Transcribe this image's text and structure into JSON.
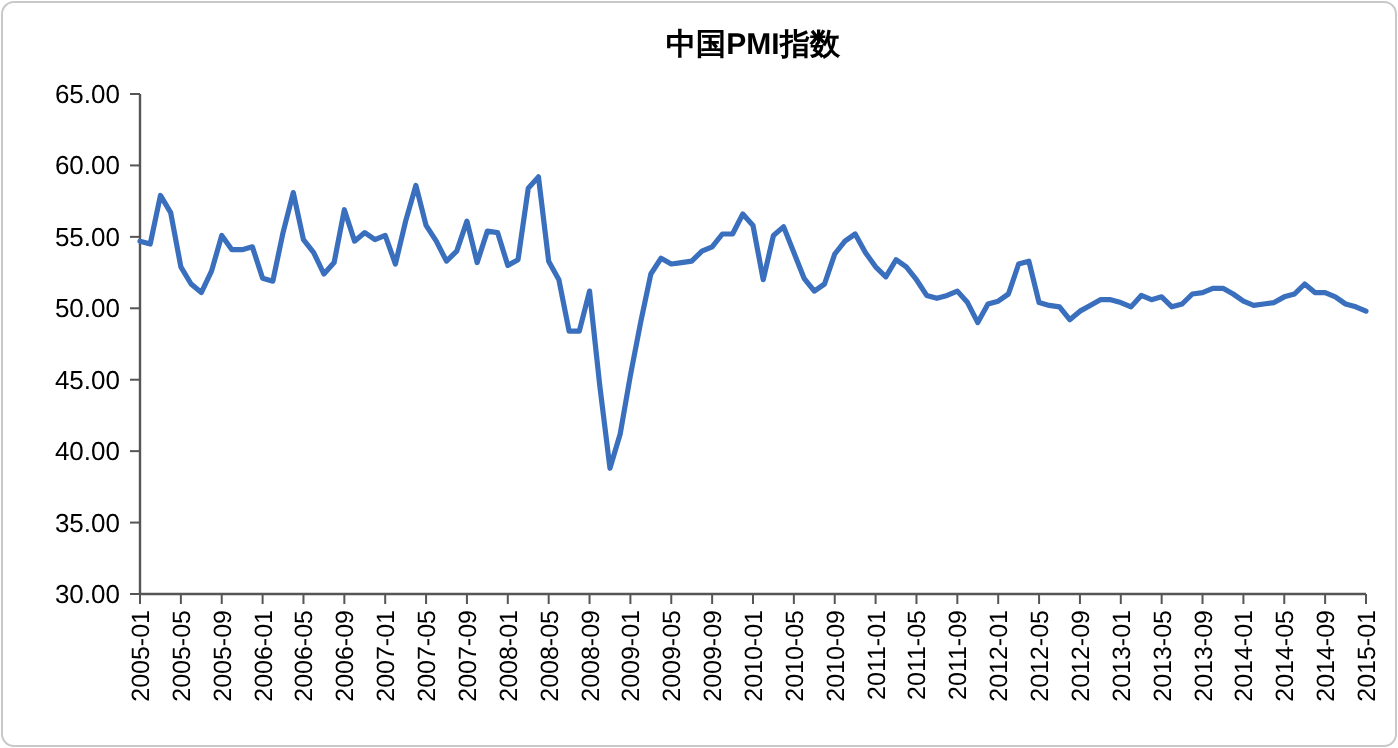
{
  "chart_data": {
    "type": "line",
    "title": "中国PMI指数",
    "categories": [
      "2005-01",
      null,
      null,
      null,
      "2005-05",
      null,
      null,
      null,
      "2005-09",
      null,
      null,
      null,
      "2006-01",
      null,
      null,
      null,
      "2006-05",
      null,
      null,
      null,
      "2006-09",
      null,
      null,
      null,
      "2007-01",
      null,
      null,
      null,
      "2007-05",
      null,
      null,
      null,
      "2007-09",
      null,
      null,
      null,
      "2008-01",
      null,
      null,
      null,
      "2008-05",
      null,
      null,
      null,
      "2008-09",
      null,
      null,
      null,
      "2009-01",
      null,
      null,
      null,
      "2009-05",
      null,
      null,
      null,
      "2009-09",
      null,
      null,
      null,
      "2010-01",
      null,
      null,
      null,
      "2010-05",
      null,
      null,
      null,
      "2010-09",
      null,
      null,
      null,
      "2011-01",
      null,
      null,
      null,
      "2011-05",
      null,
      null,
      null,
      "2011-09",
      null,
      null,
      null,
      "2012-01",
      null,
      null,
      null,
      "2012-05",
      null,
      null,
      null,
      "2012-09",
      null,
      null,
      null,
      "2013-01",
      null,
      null,
      null,
      "2013-05",
      null,
      null,
      null,
      "2013-09",
      null,
      null,
      null,
      "2014-01",
      null,
      null,
      null,
      "2014-05",
      null,
      null,
      null,
      "2014-09",
      null,
      null,
      null,
      "2015-01"
    ],
    "series": [
      {
        "color": "#3a6fbd",
        "values": [
          54.7,
          54.5,
          57.9,
          56.7,
          52.9,
          51.7,
          51.1,
          52.6,
          55.1,
          54.1,
          54.1,
          54.3,
          52.1,
          51.9,
          55.3,
          58.1,
          54.8,
          53.9,
          52.4,
          53.2,
          56.9,
          54.7,
          55.3,
          54.8,
          55.1,
          53.1,
          56.1,
          58.6,
          55.8,
          54.7,
          53.3,
          54.0,
          56.1,
          53.2,
          55.4,
          55.3,
          53.0,
          53.4,
          58.4,
          59.2,
          53.3,
          52.0,
          48.4,
          48.4,
          51.2,
          44.6,
          38.8,
          41.2,
          45.3,
          49.0,
          52.4,
          53.5,
          53.1,
          53.2,
          53.3,
          54.0,
          54.3,
          55.2,
          55.2,
          56.6,
          55.8,
          52.0,
          55.1,
          55.7,
          53.9,
          52.1,
          51.2,
          51.7,
          53.8,
          54.7,
          55.2,
          53.9,
          52.9,
          52.2,
          53.4,
          52.9,
          52.0,
          50.9,
          50.7,
          50.9,
          51.2,
          50.4,
          49.0,
          50.3,
          50.5,
          51.0,
          53.1,
          53.3,
          50.4,
          50.2,
          50.1,
          49.2,
          49.8,
          50.2,
          50.6,
          50.6,
          50.4,
          50.1,
          50.9,
          50.6,
          50.8,
          50.1,
          50.3,
          51.0,
          51.1,
          51.4,
          51.4,
          51.0,
          50.5,
          50.2,
          50.3,
          50.4,
          50.8,
          51.0,
          51.7,
          51.1,
          51.1,
          50.8,
          50.3,
          50.1,
          49.8
        ]
      }
    ],
    "ylim": [
      30,
      65
    ],
    "yticks": [
      {
        "value": 30,
        "label": "30.00"
      },
      {
        "value": 35,
        "label": "35.00"
      },
      {
        "value": 40,
        "label": "40.00"
      },
      {
        "value": 45,
        "label": "45.00"
      },
      {
        "value": 50,
        "label": "50.00"
      },
      {
        "value": 55,
        "label": "55.00"
      },
      {
        "value": 60,
        "label": "60.00"
      },
      {
        "value": 65,
        "label": "65.00"
      }
    ],
    "marker": "none",
    "line_style": "solid"
  }
}
